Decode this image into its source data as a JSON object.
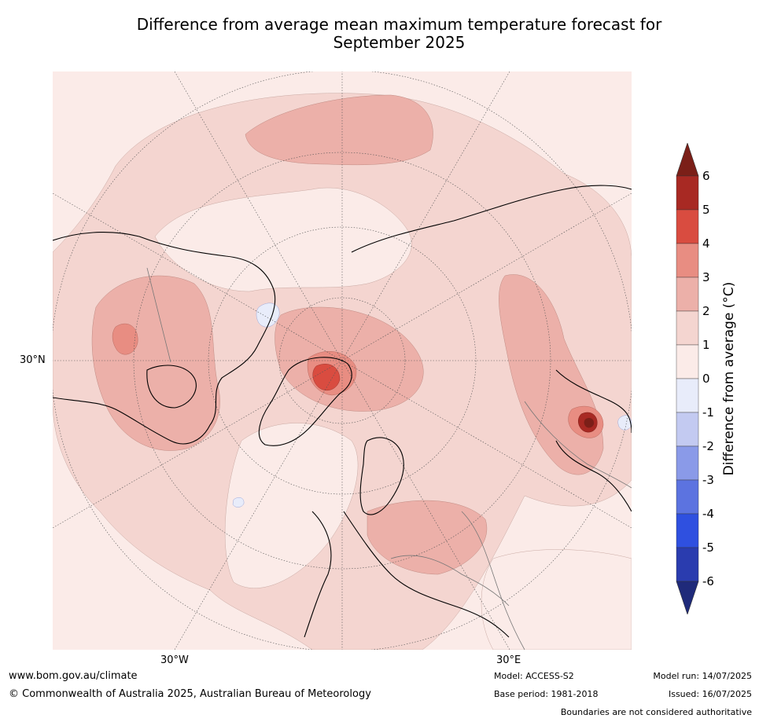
{
  "title_line1": "Difference from average mean maximum temperature forecast for",
  "title_line2": "September 2025",
  "map": {
    "projection": "north polar stereographic",
    "lat_label": "30°N",
    "lon_labels": [
      "30°W",
      "30°E"
    ],
    "background_color": "#fbebe8"
  },
  "colorbar": {
    "label": "Difference from average (°C)",
    "ticks": [
      "6",
      "5",
      "4",
      "3",
      "2",
      "1",
      "0",
      "-1",
      "-2",
      "-3",
      "-4",
      "-5",
      "-6"
    ],
    "bins": [
      {
        "range": "above 6",
        "color": "#7b1f18"
      },
      {
        "range": "5 to 6",
        "color": "#a82923"
      },
      {
        "range": "4 to 5",
        "color": "#d94c40"
      },
      {
        "range": "3 to 4",
        "color": "#e88d82"
      },
      {
        "range": "2 to 3",
        "color": "#ecb0a9"
      },
      {
        "range": "1 to 2",
        "color": "#f4d5d0"
      },
      {
        "range": "0 to 1",
        "color": "#fbebe8"
      },
      {
        "range": "-1 to 0",
        "color": "#e8ecfa"
      },
      {
        "range": "-2 to -1",
        "color": "#c3caf1"
      },
      {
        "range": "-3 to -2",
        "color": "#8a9ae8"
      },
      {
        "range": "-4 to -3",
        "color": "#5c73e0"
      },
      {
        "range": "-5 to -4",
        "color": "#2f50e0"
      },
      {
        "range": "-6 to -5",
        "color": "#2a3caf"
      },
      {
        "range": "below -6",
        "color": "#1f2a7a"
      }
    ]
  },
  "footer": {
    "url": "www.bom.gov.au/climate",
    "copyright": "© Commonwealth of Australia 2025, Australian Bureau of Meteorology",
    "model": "Model: ACCESS-S2",
    "base_period": "Base period: 1981-2018",
    "model_run": "Model run: 14/07/2025",
    "issued": "Issued: 16/07/2025",
    "disclaimer": "Boundaries are not considered authoritative"
  }
}
